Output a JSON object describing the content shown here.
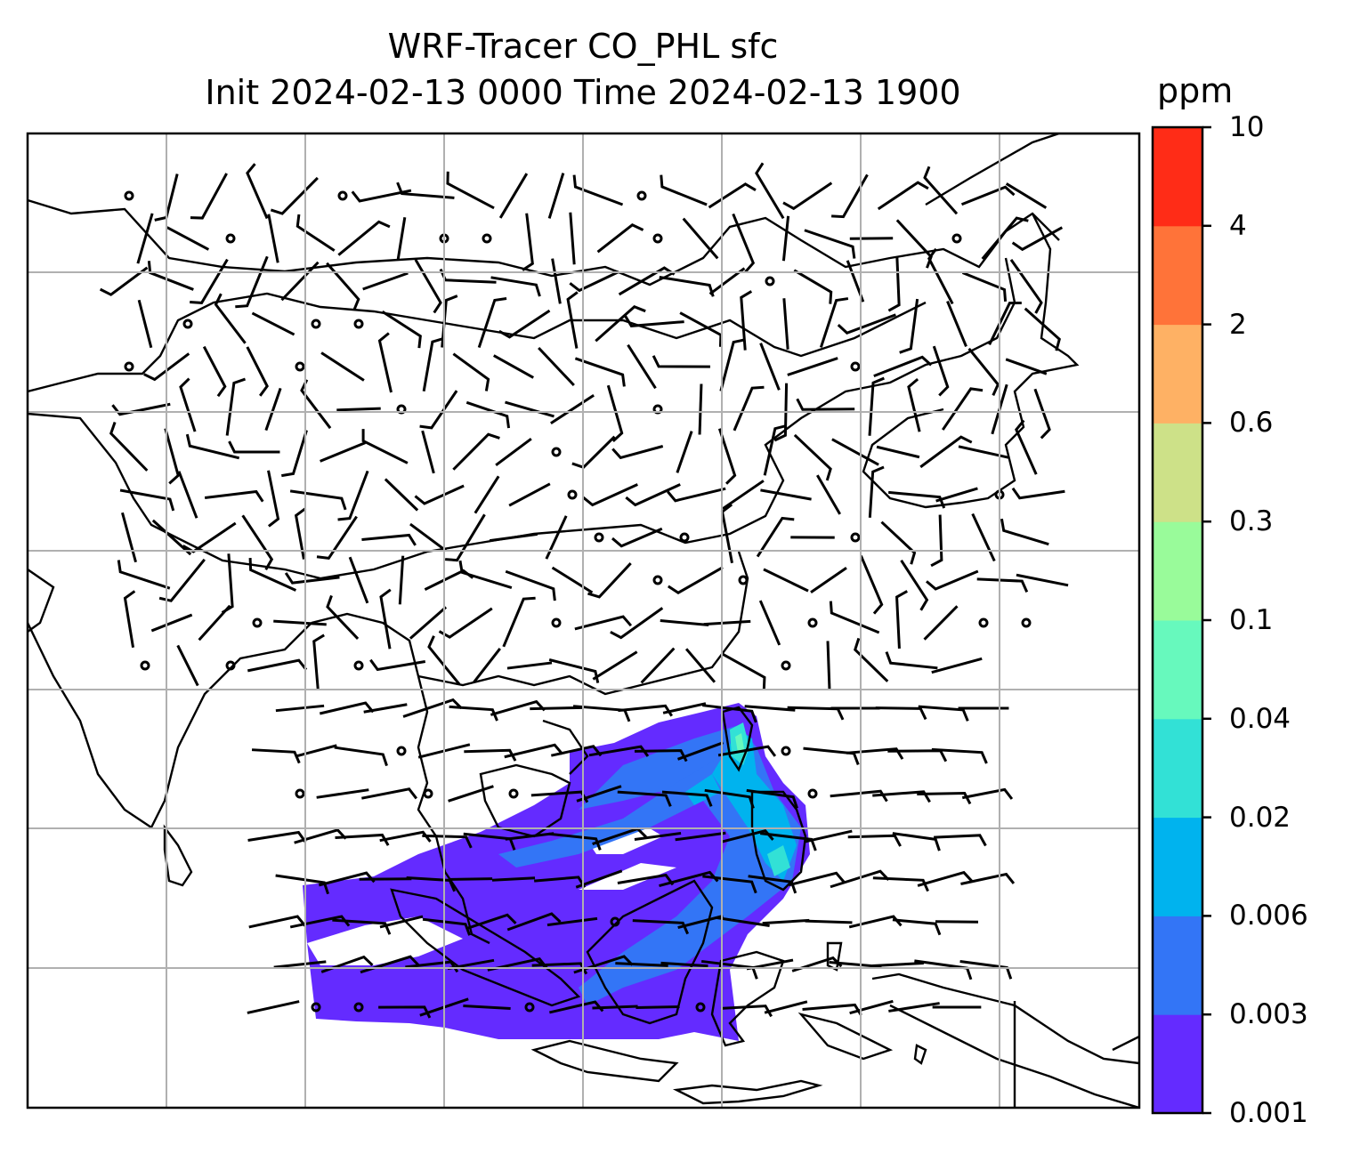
{
  "title": {
    "line1": "WRF-Tracer CO_PHL sfc",
    "line2": "Init 2024-02-13 0000 Time 2024-02-13 1900"
  },
  "colorbar": {
    "unit": "ppm",
    "levels": [
      "0.001",
      "0.003",
      "0.006",
      "0.02",
      "0.04",
      "0.1",
      "0.3",
      "0.6",
      "2",
      "4",
      "10"
    ],
    "colors": [
      "#642bff",
      "#3375f6",
      "#00b3ee",
      "#32e1d6",
      "#67f9bd",
      "#99fb9a",
      "#cde188",
      "#feb164",
      "#ff7339",
      "#ff2c17"
    ]
  },
  "map": {
    "grid": "on",
    "field": "CO_PHL surface tracer concentration",
    "overlay": "wind barbs"
  }
}
